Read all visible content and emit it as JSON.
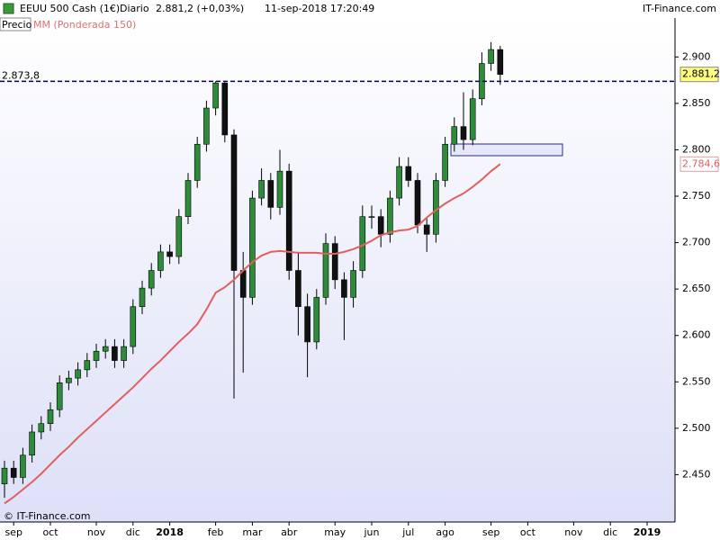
{
  "chart_data": {
    "type": "candlestick",
    "title": "EEUU 500 Cash (1€)",
    "period": "Diario",
    "last_quote": "2.881,2 (+0,03%)",
    "timestamp": "11-sep-2018 17:20:49",
    "source": "IT-Finance.com",
    "copyright": "© IT-Finance.com",
    "categories": [
      null,
      "sep",
      null,
      null,
      null,
      "oct",
      null,
      null,
      null,
      null,
      "nov",
      null,
      null,
      null,
      "dic",
      null,
      null,
      null,
      "2018",
      null,
      null,
      null,
      null,
      "feb",
      null,
      null,
      null,
      "mar",
      null,
      null,
      null,
      "abr",
      null,
      null,
      null,
      null,
      "may",
      null,
      null,
      null,
      "jun",
      null,
      null,
      null,
      "jul",
      null,
      null,
      null,
      "ago",
      null,
      null,
      null,
      null,
      "sep",
      null,
      null,
      null,
      "oct",
      null,
      null,
      null,
      null,
      "nov",
      null,
      null,
      null,
      "dic",
      null,
      null,
      null,
      "2019",
      null,
      null
    ],
    "series": [
      {
        "name": "Precio",
        "up_color": "#2e8b3a",
        "down_color": "#111111",
        "open": [
          2440,
          2457,
          2447,
          2471,
          2496,
          2505,
          2520,
          2549,
          2554,
          2563,
          2573,
          2583,
          2588,
          2573,
          2588,
          2631,
          2651,
          2670,
          2690,
          2685,
          2728,
          2767,
          2806,
          2845,
          2872,
          2816,
          2670,
          2641,
          2748,
          2767,
          2738,
          2777,
          2670,
          2631,
          2593,
          2641,
          2699,
          2660,
          2641,
          2670,
          2728,
          2728,
          2709,
          2748,
          2782,
          2767,
          2719,
          2709,
          2767,
          2806,
          2825,
          2811,
          2855,
          2893,
          2908,
          null,
          null,
          null,
          null,
          null,
          null,
          null,
          null,
          null,
          null,
          null,
          null,
          null,
          null,
          null,
          null,
          null,
          null
        ],
        "high": [
          2465,
          2465,
          2479,
          2504,
          2513,
          2528,
          2557,
          2562,
          2571,
          2581,
          2591,
          2596,
          2596,
          2596,
          2639,
          2659,
          2678,
          2698,
          2698,
          2736,
          2775,
          2814,
          2853,
          2873.8,
          2873,
          2822,
          2690,
          2756,
          2780,
          2775,
          2800,
          2785,
          2690,
          2645,
          2650,
          2710,
          2707,
          2668,
          2680,
          2740,
          2740,
          2736,
          2756,
          2792,
          2792,
          2775,
          2727,
          2775,
          2814,
          2835,
          2862,
          2865,
          2905,
          2916,
          2912,
          null,
          null,
          null,
          null,
          null,
          null,
          null,
          null,
          null,
          null,
          null,
          null,
          null,
          null,
          null,
          null,
          null,
          null
        ],
        "low": [
          2425,
          2440,
          2440,
          2463,
          2488,
          2497,
          2512,
          2541,
          2546,
          2555,
          2565,
          2575,
          2565,
          2565,
          2580,
          2623,
          2643,
          2662,
          2677,
          2677,
          2720,
          2759,
          2798,
          2837,
          2808,
          2532,
          2560,
          2633,
          2740,
          2725,
          2730,
          2660,
          2600,
          2555,
          2585,
          2633,
          2650,
          2595,
          2630,
          2662,
          2715,
          2695,
          2700,
          2740,
          2760,
          2710,
          2690,
          2700,
          2760,
          2798,
          2800,
          2805,
          2848,
          2885,
          2870,
          null,
          null,
          null,
          null,
          null,
          null,
          null,
          null,
          null,
          null,
          null,
          null,
          null,
          null,
          null,
          null,
          null,
          null
        ],
        "close": [
          2457,
          2447,
          2471,
          2496,
          2505,
          2520,
          2549,
          2554,
          2563,
          2573,
          2583,
          2588,
          2573,
          2588,
          2631,
          2651,
          2670,
          2690,
          2685,
          2728,
          2767,
          2806,
          2845,
          2872,
          2816,
          2670,
          2641,
          2748,
          2767,
          2738,
          2777,
          2670,
          2631,
          2593,
          2641,
          2699,
          2660,
          2641,
          2670,
          2728,
          2728,
          2709,
          2748,
          2782,
          2767,
          2719,
          2709,
          2767,
          2806,
          2825,
          2811,
          2855,
          2893,
          2908,
          2881.2,
          null,
          null,
          null,
          null,
          null,
          null,
          null,
          null,
          null,
          null,
          null,
          null,
          null,
          null,
          null,
          null,
          null,
          null
        ]
      },
      {
        "name": "MM (Ponderada 150)",
        "color": "#e06060",
        "values": [
          2419,
          2426,
          2434,
          2442,
          2451,
          2461,
          2471,
          2480,
          2490,
          2499,
          2508,
          2517,
          2526,
          2535,
          2544,
          2554,
          2564,
          2573,
          2583,
          2593,
          2602,
          2612,
          2628,
          2646,
          2652,
          2660,
          2670,
          2679,
          2686,
          2690,
          2691,
          2690,
          2689,
          2689,
          2689,
          2688,
          2688,
          2690,
          2693,
          2697,
          2702,
          2708,
          2711,
          2713,
          2714,
          2718,
          2727,
          2735,
          2742,
          2748,
          2753,
          2760,
          2768,
          2777,
          2784.6,
          null,
          null,
          null,
          null,
          null,
          null,
          null,
          null,
          null,
          null,
          null,
          null,
          null,
          null,
          null,
          null,
          null,
          null
        ]
      }
    ],
    "last_value": {
      "value": 2881.2,
      "label": "2.881,2"
    },
    "ma_last": {
      "value": 2784.6,
      "label": "2.784,6"
    },
    "hline": {
      "value": 2873.8,
      "label": "2.873,8"
    },
    "ylim": [
      2399,
      2942
    ],
    "yticks": [
      {
        "value": 2450,
        "label": "2.450"
      },
      {
        "value": 2500,
        "label": "2.500"
      },
      {
        "value": 2550,
        "label": "2.550"
      },
      {
        "value": 2600,
        "label": "2.600"
      },
      {
        "value": 2650,
        "label": "2.650"
      },
      {
        "value": 2700,
        "label": "2.700"
      },
      {
        "value": 2750,
        "label": "2.750"
      },
      {
        "value": 2800,
        "label": "2.800"
      },
      {
        "value": 2850,
        "label": "2.850"
      },
      {
        "value": 2900,
        "label": "2.900"
      }
    ]
  }
}
